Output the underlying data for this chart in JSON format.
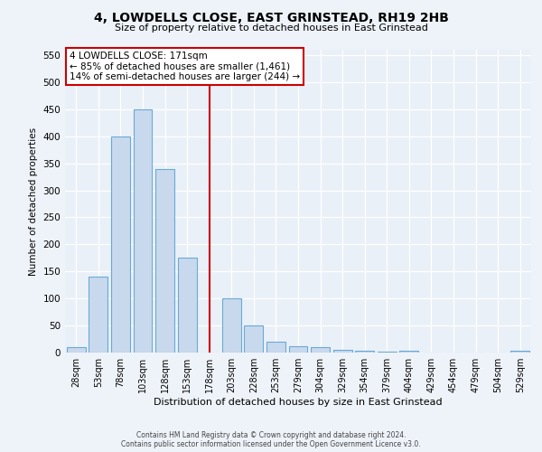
{
  "title": "4, LOWDELLS CLOSE, EAST GRINSTEAD, RH19 2HB",
  "subtitle": "Size of property relative to detached houses in East Grinstead",
  "xlabel": "Distribution of detached houses by size in East Grinstead",
  "ylabel": "Number of detached properties",
  "bar_color": "#c8d9ee",
  "bar_edge_color": "#6aaad4",
  "categories": [
    "28sqm",
    "53sqm",
    "78sqm",
    "103sqm",
    "128sqm",
    "153sqm",
    "178sqm",
    "203sqm",
    "228sqm",
    "253sqm",
    "279sqm",
    "304sqm",
    "329sqm",
    "354sqm",
    "379sqm",
    "404sqm",
    "429sqm",
    "454sqm",
    "479sqm",
    "504sqm",
    "529sqm"
  ],
  "values": [
    10,
    140,
    400,
    450,
    340,
    175,
    0,
    100,
    50,
    20,
    12,
    10,
    5,
    3,
    2,
    3,
    0,
    0,
    0,
    0,
    3
  ],
  "ylim": [
    0,
    560
  ],
  "yticks": [
    0,
    50,
    100,
    150,
    200,
    250,
    300,
    350,
    400,
    450,
    500,
    550
  ],
  "red_line_x": 6,
  "red_line_color": "#cc0000",
  "annotation_text": "4 LOWDELLS CLOSE: 171sqm\n← 85% of detached houses are smaller (1,461)\n14% of semi-detached houses are larger (244) →",
  "annotation_box_color": "#ffffff",
  "annotation_box_edge": "#cc0000",
  "footer_line1": "Contains HM Land Registry data © Crown copyright and database right 2024.",
  "footer_line2": "Contains public sector information licensed under the Open Government Licence v3.0.",
  "bg_color": "#eef3fa",
  "plot_bg_color": "#eaf0f8"
}
